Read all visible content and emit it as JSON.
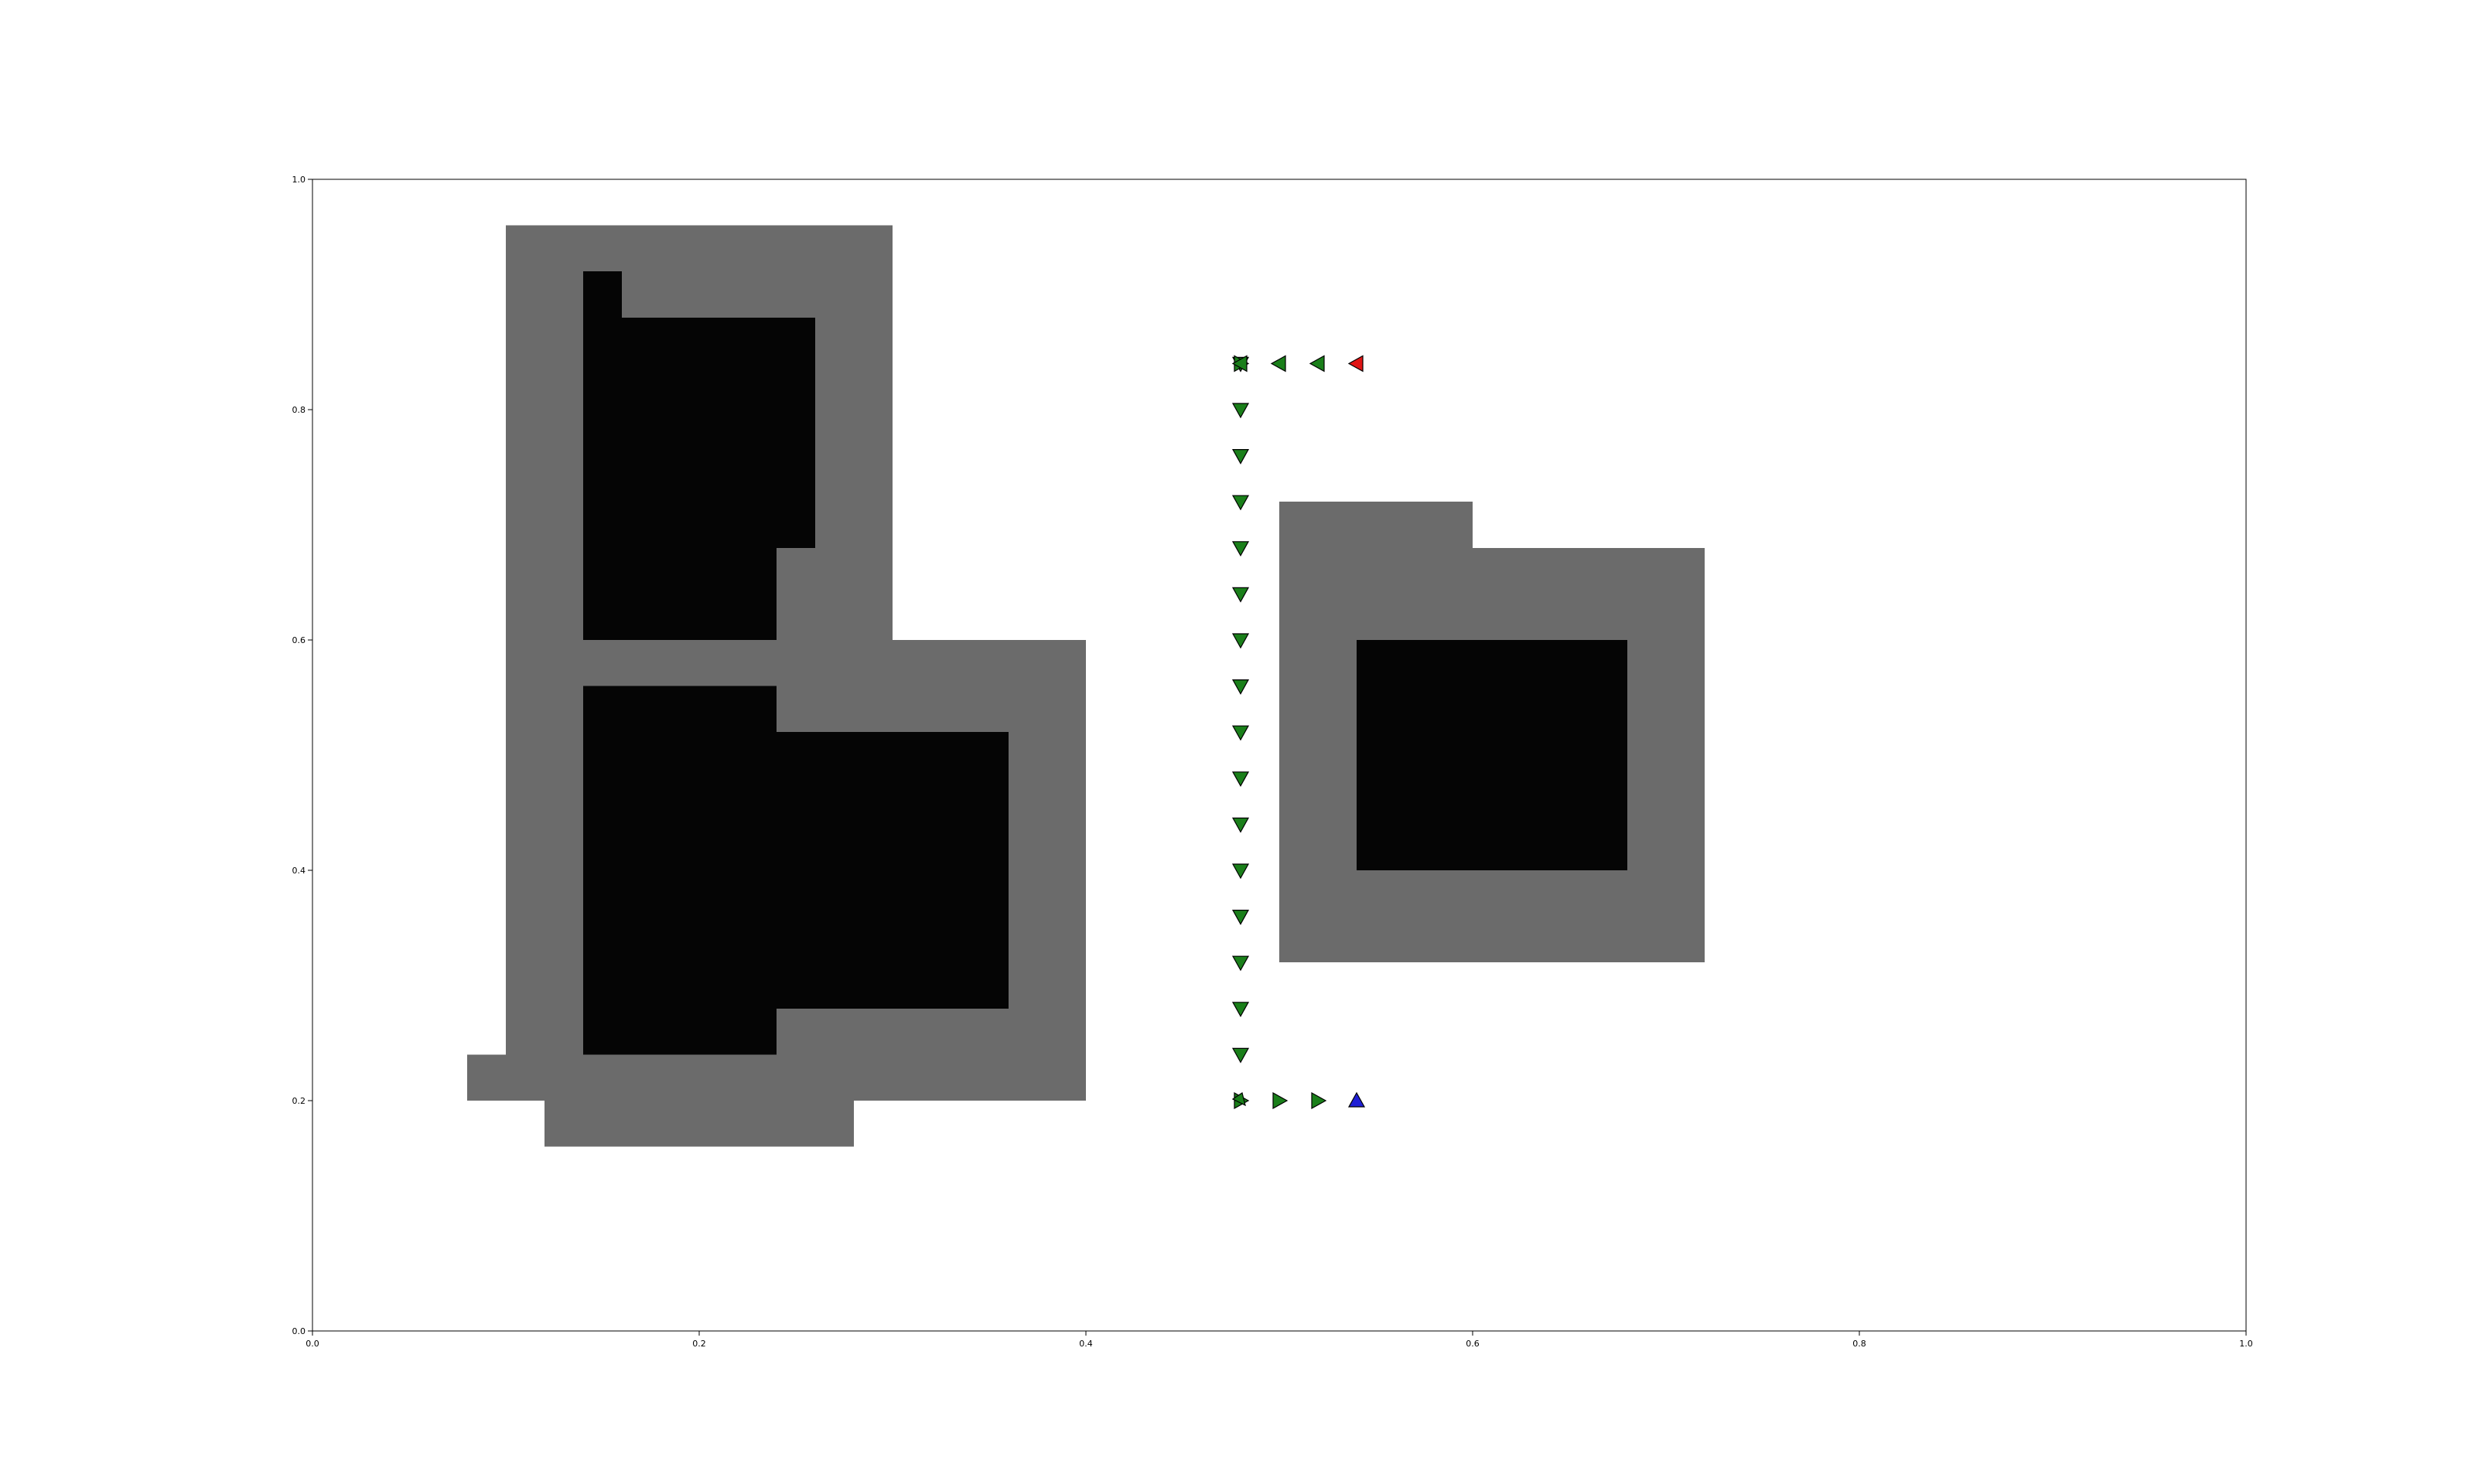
{
  "chart_data": {
    "type": "heatmap",
    "title": "",
    "xlabel": "",
    "ylabel": "",
    "xlim": [
      0.0,
      1.0
    ],
    "ylim": [
      0.0,
      1.0
    ],
    "grid": false,
    "legend": "none",
    "xticks": [
      "0.0",
      "0.2",
      "0.4",
      "0.6",
      "0.8",
      "1.0"
    ],
    "yticks": [
      "0.0",
      "0.2",
      "0.4",
      "0.6",
      "0.8",
      "1.0"
    ],
    "colors": {
      "inflated_obstacle": "#6b6b6b",
      "obstacle": "#050505",
      "path_marker": "#1a7f1a",
      "start_marker": "#1f1fd6",
      "goal_marker": "#e01515",
      "marker_edge": "#000000"
    },
    "inflated_regions": [
      [
        0.1,
        0.3,
        0.24,
        0.96
      ],
      [
        0.08,
        0.3,
        0.2,
        0.24
      ],
      [
        0.12,
        0.28,
        0.16,
        0.2
      ],
      [
        0.28,
        0.4,
        0.2,
        0.6
      ],
      [
        0.5,
        0.6,
        0.32,
        0.72
      ],
      [
        0.6,
        0.72,
        0.32,
        0.68
      ]
    ],
    "obstacle_regions": [
      [
        0.14,
        0.16,
        0.88,
        0.92
      ],
      [
        0.14,
        0.26,
        0.68,
        0.88
      ],
      [
        0.14,
        0.24,
        0.6,
        0.68
      ],
      [
        0.14,
        0.24,
        0.24,
        0.56
      ],
      [
        0.24,
        0.36,
        0.32,
        0.52
      ],
      [
        0.24,
        0.28,
        0.28,
        0.32
      ],
      [
        0.24,
        0.36,
        0.28,
        0.32
      ],
      [
        0.54,
        0.68,
        0.4,
        0.6
      ]
    ],
    "path": [
      {
        "x": 0.54,
        "y": 0.2,
        "dir": "up",
        "role": "start"
      },
      {
        "x": 0.52,
        "y": 0.2,
        "dir": "right",
        "role": "path"
      },
      {
        "x": 0.5,
        "y": 0.2,
        "dir": "right",
        "role": "path"
      },
      {
        "x": 0.48,
        "y": 0.2,
        "dir": "right",
        "role": "path"
      },
      {
        "x": 0.48,
        "y": 0.2,
        "dir": "diag",
        "role": "path"
      },
      {
        "x": 0.48,
        "y": 0.24,
        "dir": "down",
        "role": "path"
      },
      {
        "x": 0.48,
        "y": 0.28,
        "dir": "down",
        "role": "path"
      },
      {
        "x": 0.48,
        "y": 0.32,
        "dir": "down",
        "role": "path"
      },
      {
        "x": 0.48,
        "y": 0.36,
        "dir": "down",
        "role": "path"
      },
      {
        "x": 0.48,
        "y": 0.4,
        "dir": "down",
        "role": "path"
      },
      {
        "x": 0.48,
        "y": 0.44,
        "dir": "down",
        "role": "path"
      },
      {
        "x": 0.48,
        "y": 0.48,
        "dir": "down",
        "role": "path"
      },
      {
        "x": 0.48,
        "y": 0.52,
        "dir": "down",
        "role": "path"
      },
      {
        "x": 0.48,
        "y": 0.56,
        "dir": "down",
        "role": "path"
      },
      {
        "x": 0.48,
        "y": 0.6,
        "dir": "down",
        "role": "path"
      },
      {
        "x": 0.48,
        "y": 0.64,
        "dir": "down",
        "role": "path"
      },
      {
        "x": 0.48,
        "y": 0.68,
        "dir": "down",
        "role": "path"
      },
      {
        "x": 0.48,
        "y": 0.72,
        "dir": "down",
        "role": "path"
      },
      {
        "x": 0.48,
        "y": 0.76,
        "dir": "down",
        "role": "path"
      },
      {
        "x": 0.48,
        "y": 0.8,
        "dir": "down",
        "role": "path"
      },
      {
        "x": 0.48,
        "y": 0.84,
        "dir": "down",
        "role": "path"
      },
      {
        "x": 0.48,
        "y": 0.84,
        "dir": "right",
        "role": "path"
      },
      {
        "x": 0.48,
        "y": 0.84,
        "dir": "left",
        "role": "path"
      },
      {
        "x": 0.5,
        "y": 0.84,
        "dir": "left",
        "role": "path"
      },
      {
        "x": 0.52,
        "y": 0.84,
        "dir": "left",
        "role": "path"
      },
      {
        "x": 0.54,
        "y": 0.84,
        "dir": "left",
        "role": "goal"
      }
    ]
  }
}
